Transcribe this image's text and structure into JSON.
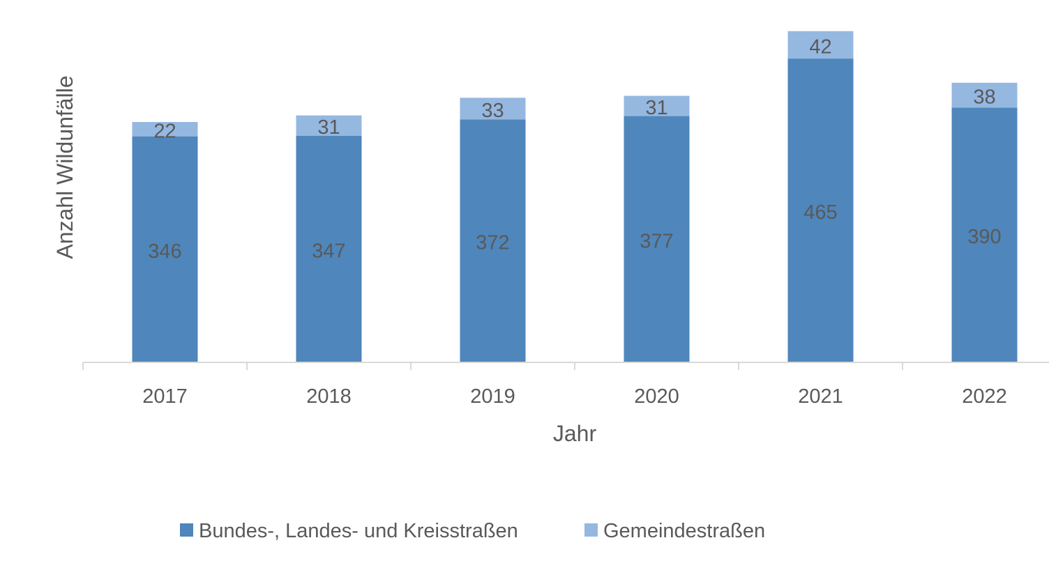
{
  "chart_data": {
    "type": "bar",
    "stacked": true,
    "title": "",
    "xlabel": "Jahr",
    "ylabel": "Anzahl Wildunfälle",
    "categories": [
      "2017",
      "2018",
      "2019",
      "2020",
      "2021",
      "2022"
    ],
    "series": [
      {
        "name": "Bundes-, Landes- und Kreisstraßen",
        "color": "#4f86bb",
        "values": [
          346,
          347,
          372,
          377,
          465,
          390
        ]
      },
      {
        "name": "Gemeindestraßen",
        "color": "#95b8e1",
        "values": [
          22,
          31,
          33,
          31,
          42,
          38
        ]
      }
    ],
    "ylim": [
      0,
      510
    ],
    "grid": false,
    "legend": "bottom"
  }
}
